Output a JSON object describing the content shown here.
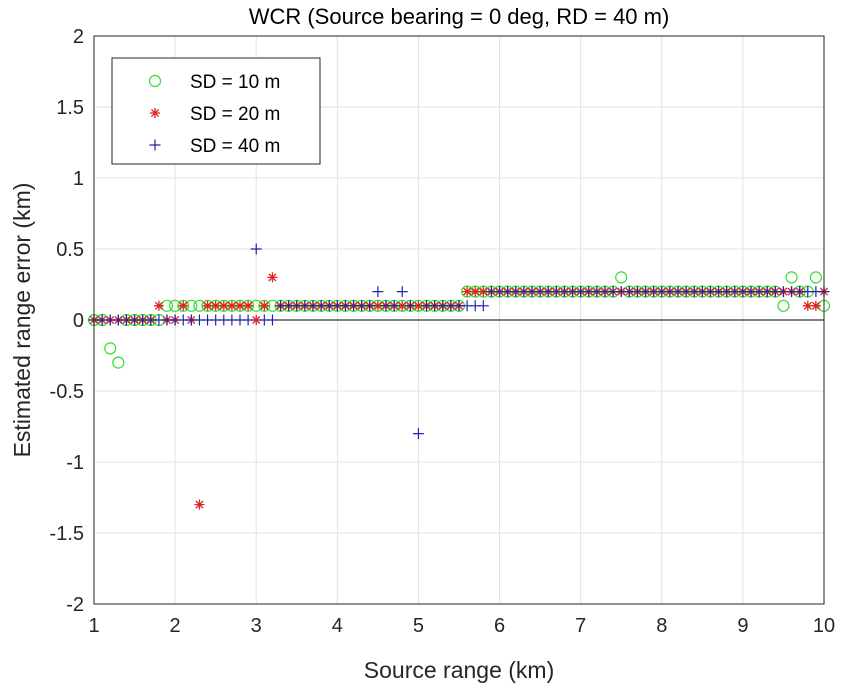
{
  "chart_data": {
    "type": "scatter",
    "title": "WCR (Source bearing = 0 deg, RD = 40 m)",
    "xlabel": "Source range (km)",
    "ylabel": "Estimated range error (km)",
    "xlim": [
      1,
      10
    ],
    "ylim": [
      -2,
      2
    ],
    "xticks": [
      1,
      2,
      3,
      4,
      5,
      6,
      7,
      8,
      9,
      10
    ],
    "yticks": [
      -2,
      -1.5,
      -1,
      -0.5,
      0,
      0.5,
      1,
      1.5,
      2
    ],
    "xtick_labels": [
      "1",
      "2",
      "3",
      "4",
      "5",
      "6",
      "7",
      "8",
      "9",
      "10"
    ],
    "ytick_labels": [
      "-2",
      "-1.5",
      "-1",
      "-0.5",
      "0",
      "0.5",
      "1",
      "1.5",
      "2"
    ],
    "grid": true,
    "legend_location": "top-left",
    "reference_line_y": 0,
    "series": [
      {
        "name": "SD = 10 m",
        "marker": "circle",
        "color": "#33dd33",
        "x": [
          1.0,
          1.1,
          1.2,
          1.3,
          1.4,
          1.5,
          1.6,
          1.7,
          1.8,
          1.9,
          2.0,
          2.1,
          2.2,
          2.3,
          2.4,
          2.5,
          2.6,
          2.7,
          2.8,
          2.9,
          3.0,
          3.1,
          3.2,
          3.3,
          3.4,
          3.5,
          3.6,
          3.7,
          3.8,
          3.9,
          4.0,
          4.1,
          4.2,
          4.3,
          4.4,
          4.5,
          4.6,
          4.7,
          4.8,
          4.9,
          5.0,
          5.1,
          5.2,
          5.3,
          5.4,
          5.5,
          5.6,
          5.7,
          5.8,
          5.9,
          6.0,
          6.1,
          6.2,
          6.3,
          6.4,
          6.5,
          6.6,
          6.7,
          6.8,
          6.9,
          7.0,
          7.1,
          7.2,
          7.3,
          7.4,
          7.5,
          7.6,
          7.7,
          7.8,
          7.9,
          8.0,
          8.1,
          8.2,
          8.3,
          8.4,
          8.5,
          8.6,
          8.7,
          8.8,
          8.9,
          9.0,
          9.1,
          9.2,
          9.3,
          9.4,
          9.5,
          9.6,
          9.7,
          9.8,
          9.9,
          10.0
        ],
        "y": [
          0,
          0,
          -0.2,
          -0.3,
          0,
          0,
          0,
          0,
          0,
          0.1,
          0.1,
          0.1,
          0.1,
          0.1,
          0.1,
          0.1,
          0.1,
          0.1,
          0.1,
          0.1,
          0.1,
          0.1,
          0.1,
          0.1,
          0.1,
          0.1,
          0.1,
          0.1,
          0.1,
          0.1,
          0.1,
          0.1,
          0.1,
          0.1,
          0.1,
          0.1,
          0.1,
          0.1,
          0.1,
          0.1,
          0.1,
          0.1,
          0.1,
          0.1,
          0.1,
          0.1,
          0.2,
          0.2,
          0.2,
          0.2,
          0.2,
          0.2,
          0.2,
          0.2,
          0.2,
          0.2,
          0.2,
          0.2,
          0.2,
          0.2,
          0.2,
          0.2,
          0.2,
          0.2,
          0.2,
          0.3,
          0.2,
          0.2,
          0.2,
          0.2,
          0.2,
          0.2,
          0.2,
          0.2,
          0.2,
          0.2,
          0.2,
          0.2,
          0.2,
          0.2,
          0.2,
          0.2,
          0.2,
          0.2,
          0.2,
          0.1,
          0.3,
          0.2,
          0.2,
          0.3,
          0.1
        ]
      },
      {
        "name": "SD = 20 m",
        "marker": "asterisk",
        "color": "#dd2222",
        "x": [
          1.0,
          1.1,
          1.2,
          1.3,
          1.4,
          1.5,
          1.6,
          1.7,
          1.8,
          1.9,
          2.0,
          2.1,
          2.2,
          2.3,
          2.4,
          2.5,
          2.6,
          2.7,
          2.8,
          2.9,
          3.0,
          3.1,
          3.2,
          3.3,
          3.4,
          3.5,
          3.6,
          3.7,
          3.8,
          3.9,
          4.0,
          4.1,
          4.2,
          4.3,
          4.4,
          4.5,
          4.6,
          4.7,
          4.8,
          4.9,
          5.0,
          5.1,
          5.2,
          5.3,
          5.4,
          5.5,
          5.6,
          5.7,
          5.8,
          5.9,
          6.0,
          6.1,
          6.2,
          6.3,
          6.4,
          6.5,
          6.6,
          6.7,
          6.8,
          6.9,
          7.0,
          7.1,
          7.2,
          7.3,
          7.4,
          7.5,
          7.6,
          7.7,
          7.8,
          7.9,
          8.0,
          8.1,
          8.2,
          8.3,
          8.4,
          8.5,
          8.6,
          8.7,
          8.8,
          8.9,
          9.0,
          9.1,
          9.2,
          9.3,
          9.4,
          9.5,
          9.6,
          9.7,
          9.8,
          9.9,
          10.0
        ],
        "y": [
          0,
          0,
          0,
          0,
          0,
          0,
          0,
          0,
          0.1,
          0,
          0,
          0.1,
          0,
          -1.3,
          0.1,
          0.1,
          0.1,
          0.1,
          0.1,
          0.1,
          0,
          0.1,
          0.3,
          0.1,
          0.1,
          0.1,
          0.1,
          0.1,
          0.1,
          0.1,
          0.1,
          0.1,
          0.1,
          0.1,
          0.1,
          0.1,
          0.1,
          0.1,
          0.1,
          0.1,
          0.1,
          0.1,
          0.1,
          0.1,
          0.1,
          0.1,
          0.2,
          0.2,
          0.2,
          0.2,
          0.2,
          0.2,
          0.2,
          0.2,
          0.2,
          0.2,
          0.2,
          0.2,
          0.2,
          0.2,
          0.2,
          0.2,
          0.2,
          0.2,
          0.2,
          0.2,
          0.2,
          0.2,
          0.2,
          0.2,
          0.2,
          0.2,
          0.2,
          0.2,
          0.2,
          0.2,
          0.2,
          0.2,
          0.2,
          0.2,
          0.2,
          0.2,
          0.2,
          0.2,
          0.2,
          0.2,
          0.2,
          0.2,
          0.1,
          0.1,
          0.2
        ]
      },
      {
        "name": "SD = 40 m",
        "marker": "plus",
        "color": "#2222aa",
        "x": [
          1.0,
          1.1,
          1.2,
          1.3,
          1.4,
          1.5,
          1.6,
          1.7,
          1.8,
          1.9,
          2.0,
          2.1,
          2.2,
          2.3,
          2.4,
          2.5,
          2.6,
          2.7,
          2.8,
          2.9,
          3.0,
          3.1,
          3.2,
          3.3,
          3.4,
          3.5,
          3.6,
          3.7,
          3.8,
          3.9,
          4.0,
          4.1,
          4.2,
          4.3,
          4.4,
          4.5,
          4.6,
          4.7,
          4.8,
          4.9,
          5.0,
          5.1,
          5.2,
          5.3,
          5.4,
          5.5,
          5.6,
          5.7,
          5.8,
          5.9,
          6.0,
          6.1,
          6.2,
          6.3,
          6.4,
          6.5,
          6.6,
          6.7,
          6.8,
          6.9,
          7.0,
          7.1,
          7.2,
          7.3,
          7.4,
          7.5,
          7.6,
          7.7,
          7.8,
          7.9,
          8.0,
          8.1,
          8.2,
          8.3,
          8.4,
          8.5,
          8.6,
          8.7,
          8.8,
          8.9,
          9.0,
          9.1,
          9.2,
          9.3,
          9.4,
          9.5,
          9.6,
          9.7,
          9.8,
          9.9,
          10.0
        ],
        "y": [
          0,
          0,
          0,
          0,
          0,
          0,
          0,
          0,
          0,
          0,
          0,
          0,
          0,
          0,
          0,
          0,
          0,
          0,
          0,
          0,
          0.5,
          0,
          0,
          0.1,
          0.1,
          0.1,
          0.1,
          0.1,
          0.1,
          0.1,
          0.1,
          0.1,
          0.1,
          0.1,
          0.1,
          0.2,
          0.1,
          0.1,
          0.2,
          0.1,
          -0.8,
          0.1,
          0.1,
          0.1,
          0.1,
          0.1,
          0.1,
          0.1,
          0.1,
          0.2,
          0.2,
          0.2,
          0.2,
          0.2,
          0.2,
          0.2,
          0.2,
          0.2,
          0.2,
          0.2,
          0.2,
          0.2,
          0.2,
          0.2,
          0.2,
          0.2,
          0.2,
          0.2,
          0.2,
          0.2,
          0.2,
          0.2,
          0.2,
          0.2,
          0.2,
          0.2,
          0.2,
          0.2,
          0.2,
          0.2,
          0.2,
          0.2,
          0.2,
          0.2,
          0.2,
          0.2,
          0.2,
          0.2,
          0.2,
          0.2,
          0.2
        ]
      }
    ]
  }
}
